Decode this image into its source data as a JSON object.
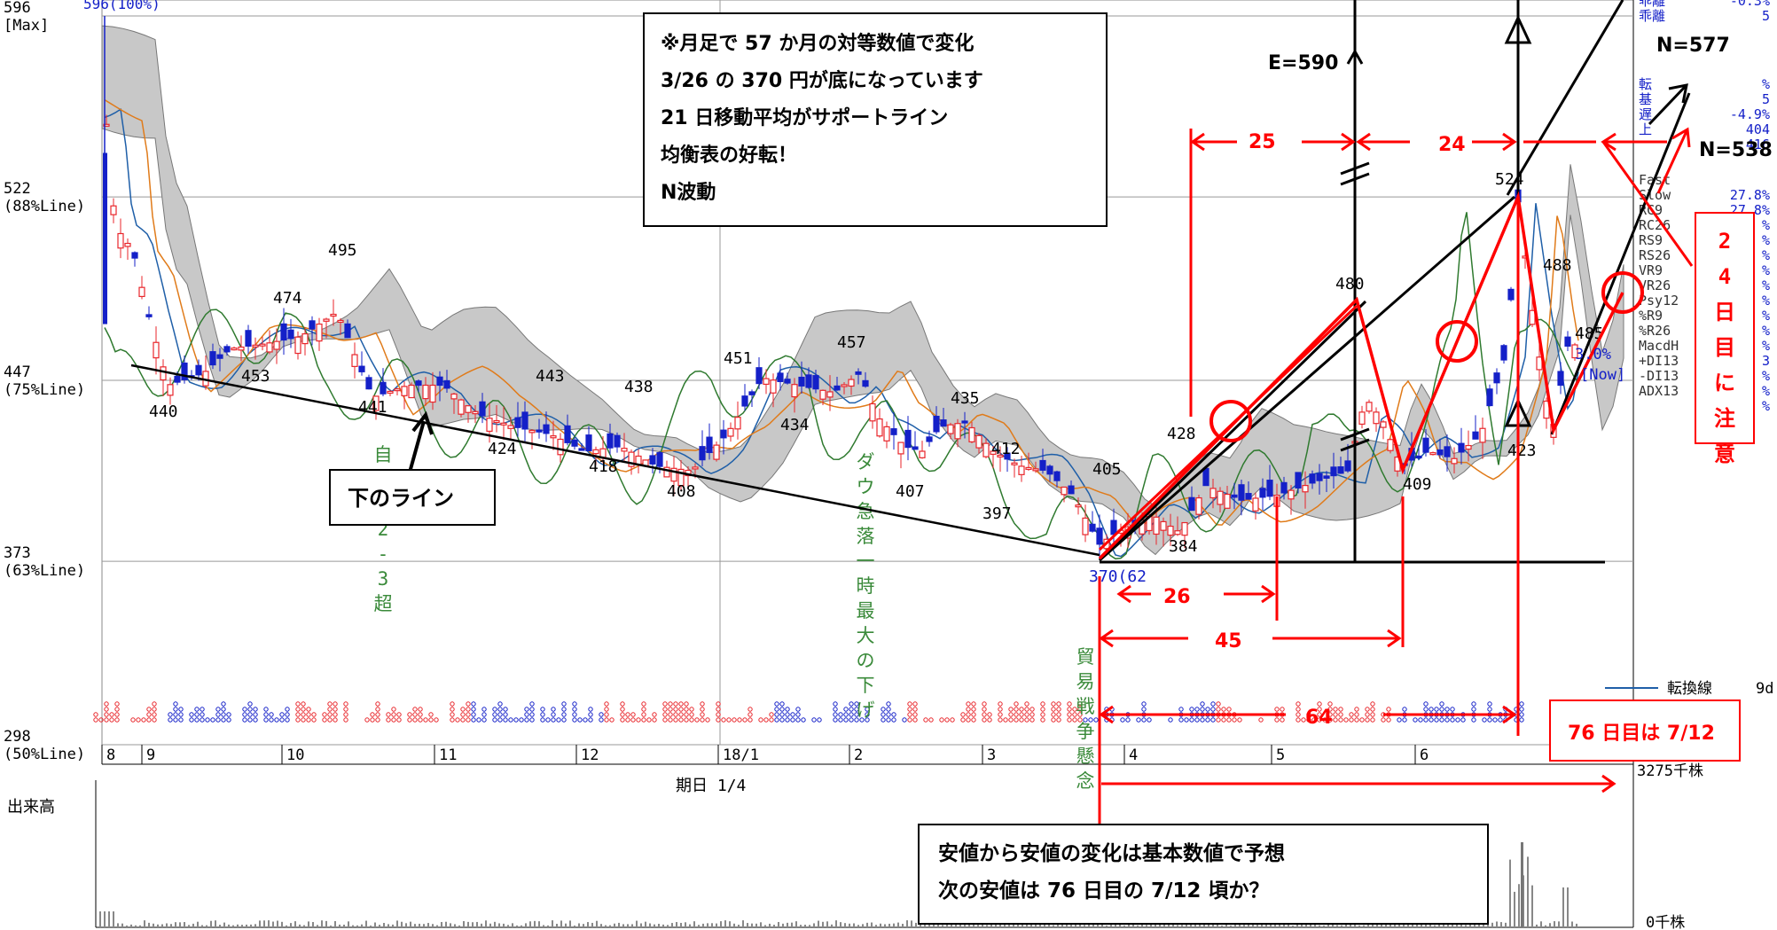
{
  "chart_data": {
    "type": "candlestick",
    "title": "",
    "ylim": [
      298,
      596
    ],
    "y_axis_labels": [
      {
        "value": 596,
        "line1": "596",
        "line2": "[Max]"
      },
      {
        "value": 522,
        "line1": "522",
        "line2": "(88%Line)"
      },
      {
        "value": 447,
        "line1": "447",
        "line2": "(75%Line)"
      },
      {
        "value": 373,
        "line1": "373",
        "line2": "(63%Line)"
      },
      {
        "value": 298,
        "line1": "298",
        "line2": "(50%Line)"
      }
    ],
    "top_price_label": "596(100%)",
    "month_labels": [
      "8",
      "9",
      "10",
      "11",
      "12",
      "18/1",
      "2",
      "3",
      "4",
      "5",
      "6"
    ],
    "period_label": "期日 1/4",
    "volume_label": "出来高",
    "volume_max_label": "3275千株",
    "volume_min_label": "0千株",
    "price_points": [
      {
        "label": "495",
        "value": 495
      },
      {
        "label": "474",
        "value": 474
      },
      {
        "label": "453",
        "value": 453
      },
      {
        "label": "440",
        "value": 440
      },
      {
        "label": "441",
        "value": 441
      },
      {
        "label": "443",
        "value": 443
      },
      {
        "label": "424",
        "value": 424
      },
      {
        "label": "438",
        "value": 438
      },
      {
        "label": "418",
        "value": 418
      },
      {
        "label": "408",
        "value": 408
      },
      {
        "label": "451",
        "value": 451
      },
      {
        "label": "434",
        "value": 434
      },
      {
        "label": "457",
        "value": 457
      },
      {
        "label": "407",
        "value": 407
      },
      {
        "label": "435",
        "value": 435
      },
      {
        "label": "412",
        "value": 412
      },
      {
        "label": "397",
        "value": 397
      },
      {
        "label": "405",
        "value": 405
      },
      {
        "label": "428",
        "value": 428
      },
      {
        "label": "384",
        "value": 384
      },
      {
        "label": "370(62",
        "value": 370
      },
      {
        "label": "480",
        "value": 480
      },
      {
        "label": "409",
        "value": 409
      },
      {
        "label": "524",
        "value": 524
      },
      {
        "label": "488",
        "value": 488
      },
      {
        "label": "423",
        "value": 423
      },
      {
        "label": "485",
        "value": 485
      }
    ],
    "sidebar_indicators": [
      "乖離",
      "乖離",
      "転",
      "基",
      "遅",
      "上",
      "Fast",
      "Slow",
      "RC9",
      "RC26",
      "RS9",
      "RS26",
      "VR9",
      "VR26",
      "Psy12",
      "%R9",
      "%R26",
      "MacdH",
      "+DI13",
      "-DI13",
      "ADX13"
    ],
    "sidebar_values": [
      "-0.3%",
      "5",
      "%",
      "5",
      "-4.9%",
      "404",
      "416",
      "27.8%",
      "27.8%",
      "%",
      "%",
      "%",
      "%",
      "%",
      "%",
      "%",
      "%",
      "%",
      "3",
      "%",
      "%",
      "%"
    ],
    "now_labels": {
      "pct": "3.0%",
      "now": "[Now]"
    },
    "legend": {
      "line_label": "転換線",
      "period": "9d"
    },
    "vertical_event_notes": [
      {
        "text": "自民勝2-3超"
      },
      {
        "text": "ダウ急落 一時最大の下げ"
      },
      {
        "text": "貿易戦争懸念"
      }
    ],
    "annotations": {
      "main_box": [
        "※月足で 57 か月の対等数値で変化",
        "3/26 の 370 円が底になっています",
        "21 日移動平均がサポートライン",
        "均衡表の好転！",
        "N波動"
      ],
      "support_line_label": "下のライン",
      "bottom_box": [
        "安値から安値の変化は基本数値で予想",
        "次の安値は 76 日目の 7/12 頃か？"
      ],
      "e_target": "E=590",
      "n_target_1": "N=577",
      "n_target_2": "N=538",
      "count_25": "25",
      "count_24": "24",
      "count_26": "26",
      "count_45": "45",
      "count_64": "64",
      "day24_note": "24日目に注意",
      "day76_note": "76 日目は 7/12"
    },
    "colors": {
      "up": "#e8262b",
      "down": "#1420c8",
      "annotation_red": "#ff0000",
      "cloud": "#c8c8c8"
    }
  }
}
